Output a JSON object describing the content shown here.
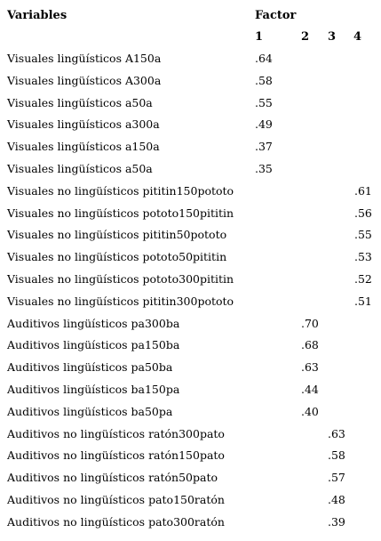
{
  "header": {
    "variables": "Variables",
    "factor": "Factor",
    "factor_numbers": [
      "1",
      "2",
      "3",
      "4"
    ]
  },
  "rows": [
    {
      "label": "Visuales lingüísticos A150a",
      "factor": 1,
      "value": ".64"
    },
    {
      "label": "Visuales lingüísticos A300a",
      "factor": 1,
      "value": ".58"
    },
    {
      "label": "Visuales lingüísticos a50a",
      "factor": 1,
      "value": ".55"
    },
    {
      "label": "Visuales lingüísticos a300a",
      "factor": 1,
      "value": ".49"
    },
    {
      "label": "Visuales lingüísticos a150a",
      "factor": 1,
      "value": ".37"
    },
    {
      "label": "Visuales lingüísticos a50a",
      "factor": 1,
      "value": ".35"
    },
    {
      "label": "Visuales no lingüísticos pititin150pototo",
      "factor": 4,
      "value": ".61"
    },
    {
      "label": "Visuales no lingüísticos pototo150pititin",
      "factor": 4,
      "value": ".56"
    },
    {
      "label": "Visuales no lingüísticos pititin50pototo",
      "factor": 4,
      "value": ".55"
    },
    {
      "label": "Visuales no lingüísticos pototo50pititin",
      "factor": 4,
      "value": ".53"
    },
    {
      "label": "Visuales no lingüísticos pototo300pititin",
      "factor": 4,
      "value": ".52"
    },
    {
      "label": "Visuales no lingüísticos pititin300pototo",
      "factor": 4,
      "value": ".51"
    },
    {
      "label": "Auditivos lingüísticos pa300ba",
      "factor": 2,
      "value": ".70"
    },
    {
      "label": "Auditivos lingüísticos pa150ba",
      "factor": 2,
      "value": ".68"
    },
    {
      "label": "Auditivos lingüísticos pa50ba",
      "factor": 2,
      "value": ".63"
    },
    {
      "label": "Auditivos lingüísticos ba150pa",
      "factor": 2,
      "value": ".44"
    },
    {
      "label": "Auditivos lingüísticos ba50pa",
      "factor": 2,
      "value": ".40"
    },
    {
      "label": "Auditivos no lingüísticos ratón300pato",
      "factor": 3,
      "value": ".63"
    },
    {
      "label": "Auditivos no lingüísticos ratón150pato",
      "factor": 3,
      "value": ".58"
    },
    {
      "label": "Auditivos no lingüísticos ratón50pato",
      "factor": 3,
      "value": ".57"
    },
    {
      "label": "Auditivos no lingüísticos pato150ratón",
      "factor": 3,
      "value": ".48"
    },
    {
      "label": "Auditivos no lingüísticos pato300ratón",
      "factor": 3,
      "value": ".39"
    }
  ]
}
